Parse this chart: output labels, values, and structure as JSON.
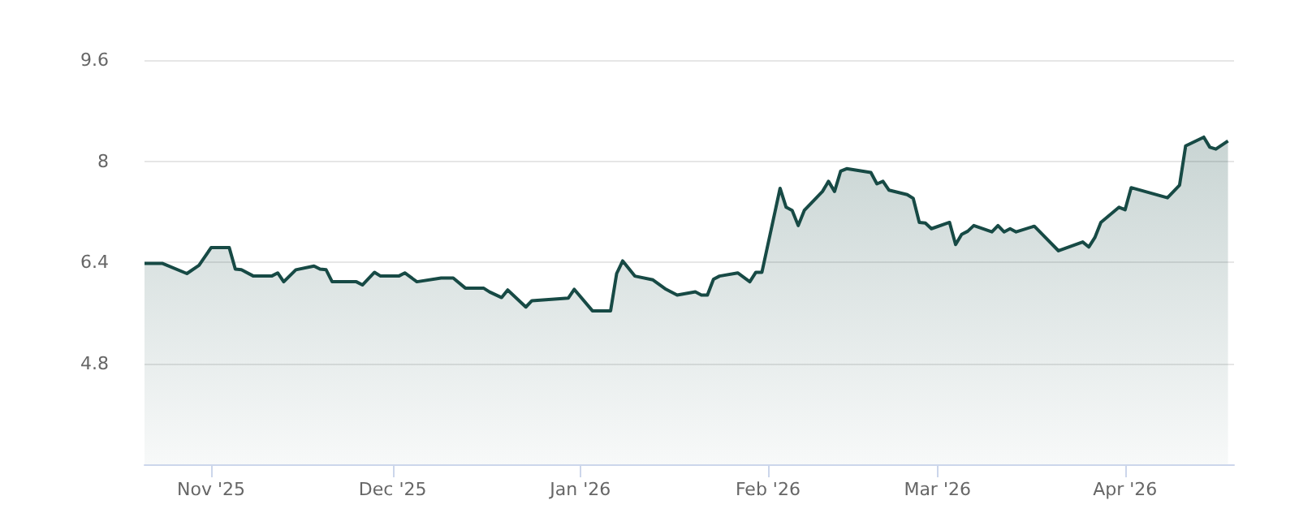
{
  "chart_data": {
    "type": "area",
    "x": [
      "2025-10-21",
      "2025-10-24",
      "2025-10-28",
      "2025-10-30",
      "2025-11-01",
      "2025-11-04",
      "2025-11-05",
      "2025-11-06",
      "2025-11-08",
      "2025-11-11",
      "2025-11-12",
      "2025-11-13",
      "2025-11-15",
      "2025-11-18",
      "2025-11-19",
      "2025-11-20",
      "2025-11-21",
      "2025-11-25",
      "2025-11-26",
      "2025-11-28",
      "2025-11-29",
      "2025-12-02",
      "2025-12-03",
      "2025-12-05",
      "2025-12-09",
      "2025-12-11",
      "2025-12-13",
      "2025-12-16",
      "2025-12-17",
      "2025-12-19",
      "2025-12-20",
      "2025-12-23",
      "2025-12-24",
      "2025-12-30",
      "2025-12-31",
      "2026-01-03",
      "2026-01-06",
      "2026-01-07",
      "2026-01-08",
      "2026-01-10",
      "2026-01-13",
      "2026-01-15",
      "2026-01-17",
      "2026-01-20",
      "2026-01-21",
      "2026-01-22",
      "2026-01-23",
      "2026-01-24",
      "2026-01-27",
      "2026-01-29",
      "2026-01-30",
      "2026-01-31",
      "2026-02-03",
      "2026-02-04",
      "2026-02-05",
      "2026-02-06",
      "2026-02-07",
      "2026-02-10",
      "2026-02-11",
      "2026-02-12",
      "2026-02-13",
      "2026-02-14",
      "2026-02-18",
      "2026-02-19",
      "2026-02-20",
      "2026-02-21",
      "2026-02-24",
      "2026-02-25",
      "2026-02-26",
      "2026-02-27",
      "2026-02-28",
      "2026-03-03",
      "2026-03-04",
      "2026-03-05",
      "2026-03-06",
      "2026-03-07",
      "2026-03-10",
      "2026-03-11",
      "2026-03-12",
      "2026-03-13",
      "2026-03-14",
      "2026-03-17",
      "2026-03-21",
      "2026-03-25",
      "2026-03-26",
      "2026-03-27",
      "2026-03-28",
      "2026-03-31",
      "2026-04-01",
      "2026-04-02",
      "2026-04-08",
      "2026-04-10",
      "2026-04-11",
      "2026-04-14",
      "2026-04-15",
      "2026-04-16",
      "2026-04-18"
    ],
    "series": [
      {
        "color": "#174a45",
        "values": [
          6.38,
          6.38,
          6.22,
          6.35,
          6.63,
          6.63,
          6.29,
          6.28,
          6.18,
          6.18,
          6.23,
          6.09,
          6.28,
          6.34,
          6.29,
          6.28,
          6.09,
          6.09,
          6.04,
          6.24,
          6.18,
          6.18,
          6.23,
          6.09,
          6.15,
          6.15,
          5.99,
          5.99,
          5.93,
          5.84,
          5.96,
          5.69,
          5.79,
          5.83,
          5.97,
          5.63,
          5.63,
          6.22,
          6.42,
          6.18,
          6.12,
          5.98,
          5.88,
          5.93,
          5.88,
          5.88,
          6.13,
          6.18,
          6.23,
          6.09,
          6.24,
          6.24,
          7.57,
          7.27,
          7.22,
          6.98,
          7.22,
          7.52,
          7.68,
          7.52,
          7.84,
          7.88,
          7.82,
          7.64,
          7.68,
          7.54,
          7.47,
          7.41,
          7.03,
          7.02,
          6.93,
          7.03,
          6.68,
          6.84,
          6.89,
          6.98,
          6.88,
          6.98,
          6.88,
          6.93,
          6.88,
          6.97,
          6.58,
          6.72,
          6.64,
          6.79,
          7.03,
          7.27,
          7.23,
          7.58,
          7.42,
          7.62,
          8.24,
          8.38,
          8.22,
          8.19,
          8.32
        ]
      }
    ],
    "xlim": [
      "2025-10-21",
      "2026-04-19"
    ],
    "xticks": [
      {
        "value": "2025-11-01",
        "label": "Nov '25"
      },
      {
        "value": "2025-12-01",
        "label": "Dec '25"
      },
      {
        "value": "2026-01-01",
        "label": "Jan '26"
      },
      {
        "value": "2026-02-01",
        "label": "Feb '26"
      },
      {
        "value": "2026-03-01",
        "label": "Mar '26"
      },
      {
        "value": "2026-04-01",
        "label": "Apr '26"
      }
    ],
    "ylim": [
      3.2,
      9.6
    ],
    "yticks": [
      4.8,
      6.4,
      8,
      9.6
    ],
    "grid": "y",
    "marker": "none",
    "line_style": "solid"
  }
}
